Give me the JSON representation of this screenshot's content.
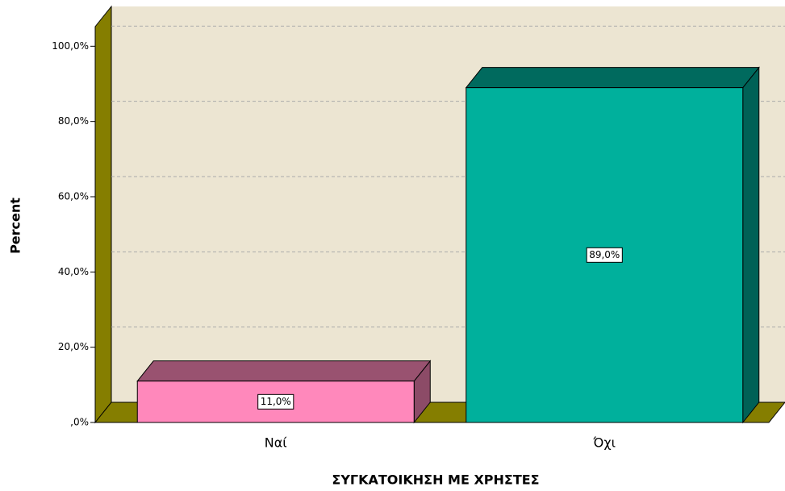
{
  "chart_data": {
    "type": "bar3d",
    "categories": [
      "Ναί",
      "Όχι"
    ],
    "values": [
      11,
      89
    ],
    "value_labels": [
      "11,0%",
      "89,0%"
    ],
    "colors": [
      "#ff88bb",
      "#00b09c"
    ],
    "xlabel": "ΣΥΓΚΑΤΟΙΚΗΣΗ ΜΕ ΧΡΗΣΤΕΣ",
    "ylabel": "Percent",
    "ylim": [
      0,
      105
    ],
    "yticks": [
      {
        "value": 0,
        "label": ",0%"
      },
      {
        "value": 20,
        "label": "20,0%"
      },
      {
        "value": 40,
        "label": "40,0%"
      },
      {
        "value": 60,
        "label": "60,0%"
      },
      {
        "value": 80,
        "label": "80,0%"
      },
      {
        "value": 100,
        "label": "100,0%"
      }
    ],
    "grid": true
  }
}
